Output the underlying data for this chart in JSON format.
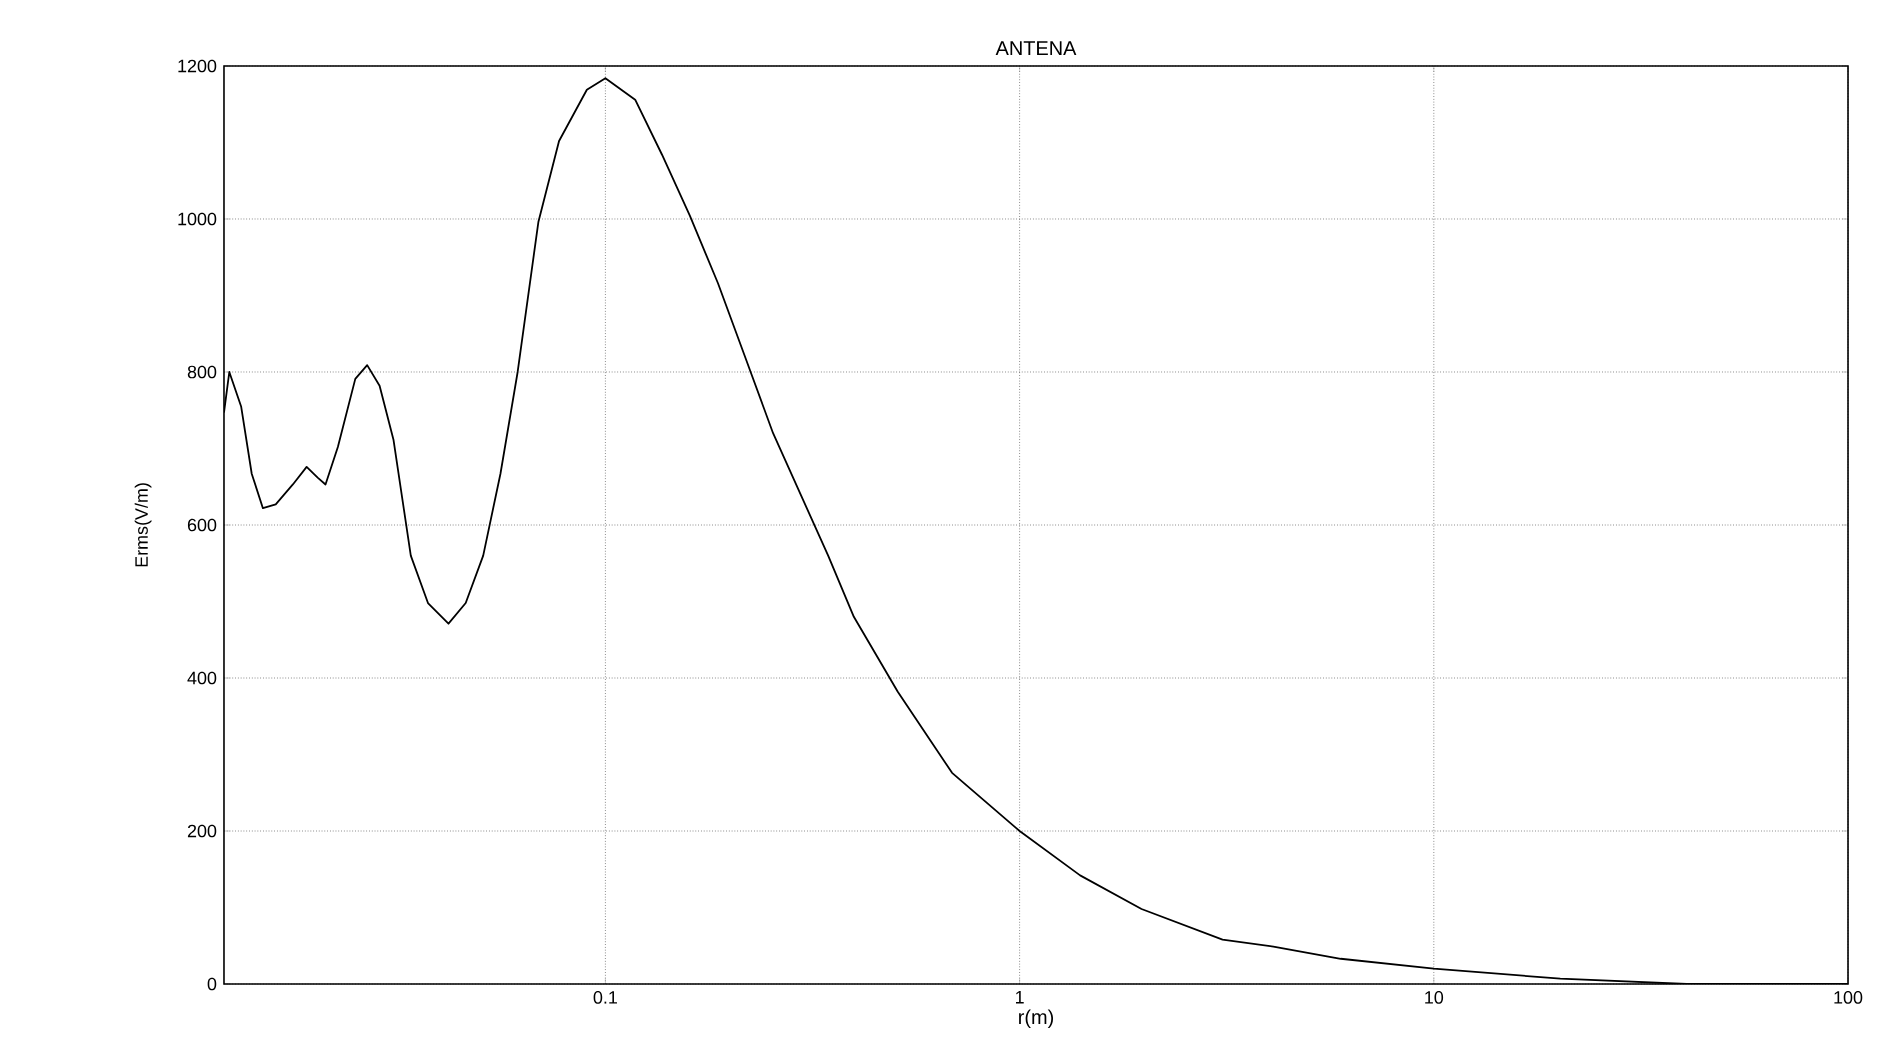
{
  "chart_data": {
    "type": "line",
    "title": "ANTENA",
    "xlabel": "r(m)",
    "ylabel": "Erms(V/m)",
    "log": "x",
    "grid": true,
    "xlim": [
      0.012,
      100
    ],
    "xticks": [
      0.1,
      1,
      10,
      100
    ],
    "ylim": [
      0,
      1200
    ],
    "yticks": [
      0,
      200,
      400,
      600,
      800,
      1000,
      1200
    ],
    "series": [
      {
        "color": "#000000",
        "x": [
          0.012,
          0.01236,
          0.0132,
          0.014,
          0.0149,
          0.016,
          0.0176,
          0.019,
          0.0202,
          0.0211,
          0.0226,
          0.0249,
          0.0266,
          0.0285,
          0.0308,
          0.0339,
          0.0373,
          0.0418,
          0.046,
          0.0507,
          0.0558,
          0.0614,
          0.0689,
          0.0773,
          0.0902,
          0.1,
          0.118,
          0.137,
          0.16,
          0.187,
          0.218,
          0.254,
          0.296,
          0.345,
          0.398,
          0.508,
          0.687,
          1,
          1.4,
          1.97,
          3.09,
          4.1,
          5.96,
          10,
          20.2,
          40.8,
          100
        ],
        "values": [
          747,
          800,
          755,
          667,
          622,
          627,
          653,
          676,
          662,
          653,
          702,
          791,
          809,
          782,
          711,
          560,
          498,
          471,
          498,
          560,
          667,
          800,
          996,
          1102,
          1169,
          1184,
          1156,
          1084,
          1004,
          916,
          818,
          720,
          640,
          560,
          480,
          382,
          276,
          200,
          142,
          98,
          58,
          49,
          33,
          20,
          7,
          0,
          0
        ]
      }
    ]
  }
}
